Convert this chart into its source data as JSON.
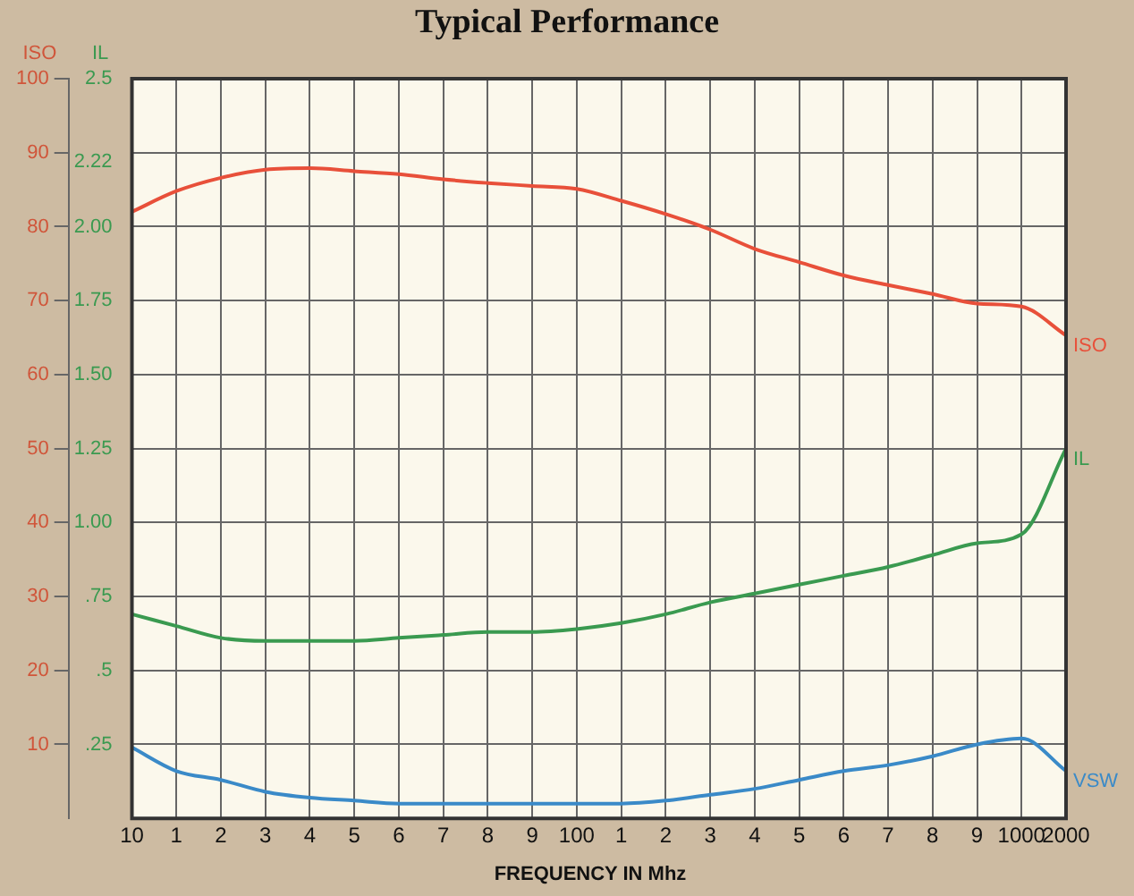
{
  "chart_data": {
    "type": "line",
    "title": "Typical Performance",
    "xlabel": "FREQUENCY IN  Mhz",
    "ylabel": "ISO",
    "y2label": "IL",
    "categories": [
      "10",
      "1",
      "2",
      "3",
      "4",
      "5",
      "6",
      "7",
      "8",
      "9",
      "100",
      "1",
      "2",
      "3",
      "4",
      "5",
      "6",
      "7",
      "8",
      "9",
      "1000",
      "2000"
    ],
    "ylim": [
      0,
      100
    ],
    "yticks": [
      10,
      20,
      30,
      40,
      50,
      60,
      70,
      80,
      90,
      100
    ],
    "y2lim": [
      0,
      2.5
    ],
    "y2ticks": [
      {
        "value": 0.25,
        "label": ".25"
      },
      {
        "value": 0.5,
        "label": ".5"
      },
      {
        "value": 0.75,
        "label": ".75"
      },
      {
        "value": 1,
        "label": "1.00"
      },
      {
        "value": 1.25,
        "label": "1.25"
      },
      {
        "value": 1.5,
        "label": "1.50"
      },
      {
        "value": 1.75,
        "label": "1.75"
      },
      {
        "value": 2,
        "label": "2.00"
      },
      2.22,
      {
        "value": 2.5,
        "label": "2.5"
      }
    ],
    "series": [
      {
        "name": "ISO",
        "color": "#e8503a",
        "values": [
          82,
          84.8,
          86.6,
          87.7,
          87.9,
          87.5,
          87.1,
          86.4,
          85.9,
          85.5,
          85.1,
          83.5,
          81.7,
          79.6,
          77,
          75.2,
          73.4,
          72.1,
          70.9,
          69.6,
          69.2,
          65.3
        ]
      },
      {
        "name": "IL",
        "color": "#3a9a50",
        "axis": "y2",
        "values": [
          0.69,
          0.65,
          0.61,
          0.6,
          0.6,
          0.6,
          0.61,
          0.62,
          0.63,
          0.63,
          0.64,
          0.66,
          0.69,
          0.73,
          0.76,
          0.79,
          0.82,
          0.85,
          0.89,
          0.93,
          0.96,
          1.25
        ]
      },
      {
        "name": "VSW",
        "color": "#3a8ac8",
        "axis": "y2",
        "values": [
          0.24,
          0.16,
          0.13,
          0.09,
          0.07,
          0.06,
          0.05,
          0.05,
          0.05,
          0.05,
          0.05,
          0.05,
          0.06,
          0.08,
          0.1,
          0.13,
          0.16,
          0.18,
          0.21,
          0.25,
          0.27,
          0.16
        ]
      }
    ],
    "grid": true,
    "legend": false,
    "marker": "none",
    "line_style": "solid"
  }
}
